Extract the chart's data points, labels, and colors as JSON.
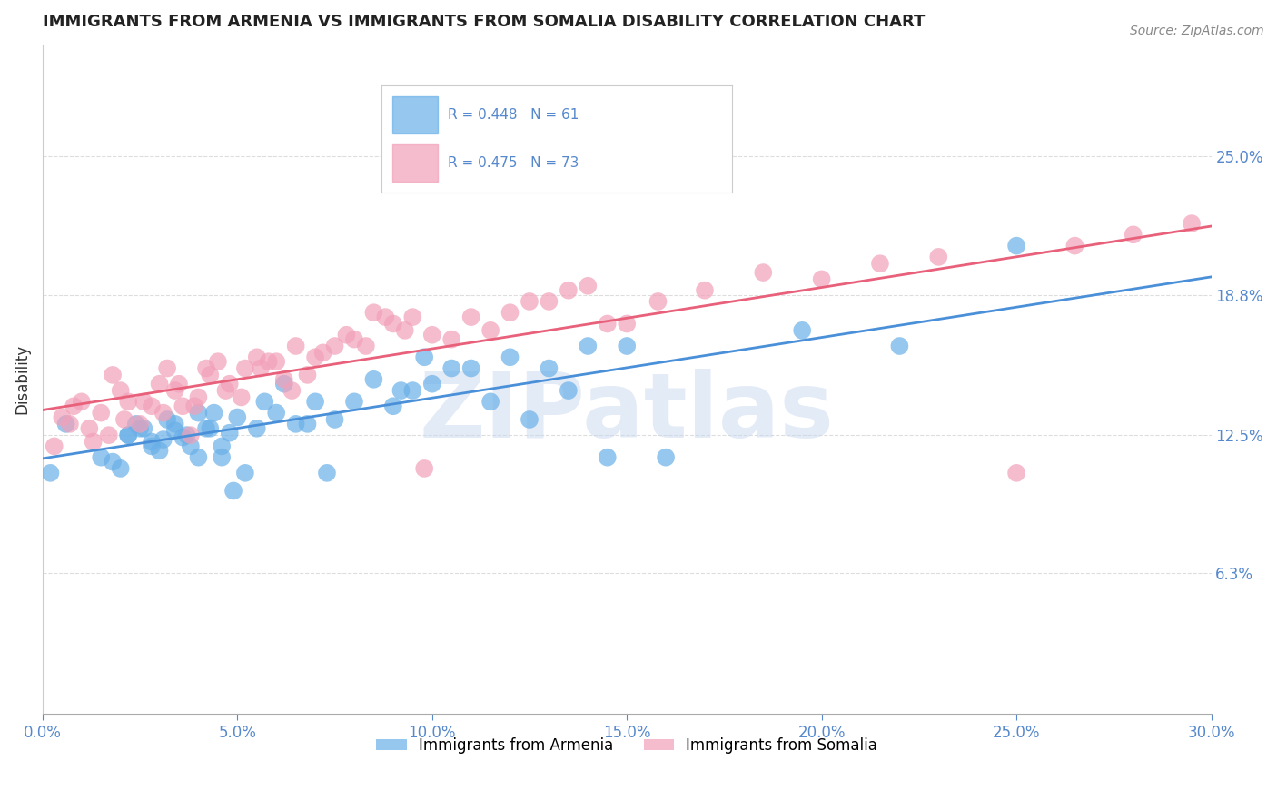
{
  "title": "IMMIGRANTS FROM ARMENIA VS IMMIGRANTS FROM SOMALIA DISABILITY CORRELATION CHART",
  "source": "Source: ZipAtlas.com",
  "ylabel": "Disability",
  "watermark": "ZIPatlas",
  "xlim": [
    0.0,
    0.3
  ],
  "ylim": [
    0.0,
    0.3
  ],
  "xticks": [
    0.0,
    0.05,
    0.1,
    0.15,
    0.2,
    0.25,
    0.3
  ],
  "ytick_labels": [
    "25.0%",
    "18.8%",
    "12.5%",
    "6.3%"
  ],
  "ytick_values": [
    0.25,
    0.188,
    0.125,
    0.063
  ],
  "armenia_R": 0.448,
  "armenia_N": 61,
  "somalia_R": 0.475,
  "somalia_N": 73,
  "armenia_color": "#6ab0e8",
  "somalia_color": "#f2a0b8",
  "armenia_line_color": "#4a90d9",
  "somalia_line_color": "#e8607a",
  "legend_label_1": "Immigrants from Armenia",
  "legend_label_2": "Immigrants from Somalia",
  "background_color": "#ffffff",
  "grid_color": "#dddddd",
  "title_color": "#222222",
  "axis_color": "#5588cc",
  "armenia_x": [
    0.006,
    0.022,
    0.024,
    0.026,
    0.028,
    0.03,
    0.032,
    0.034,
    0.036,
    0.038,
    0.04,
    0.042,
    0.044,
    0.046,
    0.048,
    0.05,
    0.055,
    0.06,
    0.065,
    0.07,
    0.075,
    0.08,
    0.09,
    0.095,
    0.1,
    0.11,
    0.12,
    0.13,
    0.14,
    0.15,
    0.002,
    0.015,
    0.018,
    0.02,
    0.022,
    0.025,
    0.028,
    0.031,
    0.034,
    0.037,
    0.04,
    0.043,
    0.046,
    0.049,
    0.052,
    0.057,
    0.062,
    0.068,
    0.073,
    0.085,
    0.092,
    0.098,
    0.105,
    0.115,
    0.125,
    0.135,
    0.145,
    0.16,
    0.195,
    0.22,
    0.25
  ],
  "armenia_y": [
    0.13,
    0.125,
    0.13,
    0.128,
    0.122,
    0.118,
    0.132,
    0.127,
    0.124,
    0.12,
    0.115,
    0.128,
    0.135,
    0.12,
    0.126,
    0.133,
    0.128,
    0.135,
    0.13,
    0.14,
    0.132,
    0.14,
    0.138,
    0.145,
    0.148,
    0.155,
    0.16,
    0.155,
    0.165,
    0.165,
    0.108,
    0.115,
    0.113,
    0.11,
    0.125,
    0.128,
    0.12,
    0.123,
    0.13,
    0.125,
    0.135,
    0.128,
    0.115,
    0.1,
    0.108,
    0.14,
    0.148,
    0.13,
    0.108,
    0.15,
    0.145,
    0.16,
    0.155,
    0.14,
    0.132,
    0.145,
    0.115,
    0.115,
    0.172,
    0.165,
    0.21
  ],
  "somalia_x": [
    0.005,
    0.008,
    0.01,
    0.012,
    0.015,
    0.018,
    0.02,
    0.022,
    0.025,
    0.028,
    0.03,
    0.032,
    0.034,
    0.036,
    0.038,
    0.04,
    0.042,
    0.045,
    0.048,
    0.052,
    0.055,
    0.058,
    0.062,
    0.065,
    0.07,
    0.075,
    0.08,
    0.085,
    0.09,
    0.095,
    0.1,
    0.11,
    0.12,
    0.13,
    0.14,
    0.15,
    0.003,
    0.007,
    0.013,
    0.017,
    0.021,
    0.026,
    0.031,
    0.035,
    0.039,
    0.043,
    0.047,
    0.051,
    0.056,
    0.06,
    0.064,
    0.068,
    0.072,
    0.078,
    0.083,
    0.088,
    0.093,
    0.098,
    0.105,
    0.115,
    0.125,
    0.135,
    0.145,
    0.158,
    0.17,
    0.185,
    0.2,
    0.215,
    0.23,
    0.25,
    0.265,
    0.28,
    0.295
  ],
  "somalia_y": [
    0.133,
    0.138,
    0.14,
    0.128,
    0.135,
    0.152,
    0.145,
    0.14,
    0.13,
    0.138,
    0.148,
    0.155,
    0.145,
    0.138,
    0.125,
    0.142,
    0.155,
    0.158,
    0.148,
    0.155,
    0.16,
    0.158,
    0.15,
    0.165,
    0.16,
    0.165,
    0.168,
    0.18,
    0.175,
    0.178,
    0.17,
    0.178,
    0.18,
    0.185,
    0.192,
    0.175,
    0.12,
    0.13,
    0.122,
    0.125,
    0.132,
    0.14,
    0.135,
    0.148,
    0.138,
    0.152,
    0.145,
    0.142,
    0.155,
    0.158,
    0.145,
    0.152,
    0.162,
    0.17,
    0.165,
    0.178,
    0.172,
    0.11,
    0.168,
    0.172,
    0.185,
    0.19,
    0.175,
    0.185,
    0.19,
    0.198,
    0.195,
    0.202,
    0.205,
    0.108,
    0.21,
    0.215,
    0.22
  ]
}
